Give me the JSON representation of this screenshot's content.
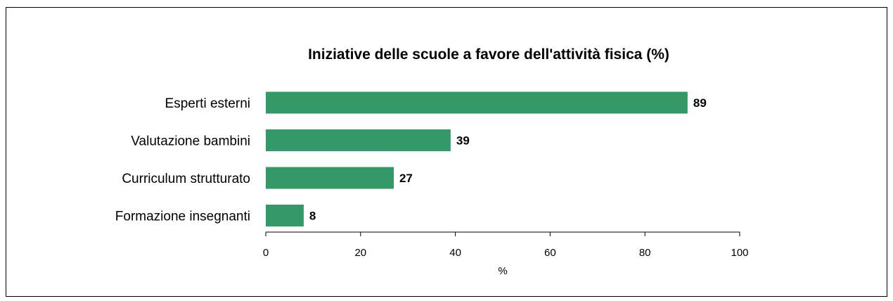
{
  "chart_data": {
    "type": "bar",
    "orientation": "horizontal",
    "title": "Iniziative delle scuole a favore dell'attività fisica (%)",
    "xlabel": "%",
    "ylabel": "",
    "categories": [
      "Esperti esterni",
      "Valutazione bambini",
      "Curriculum strutturato",
      "Formazione insegnanti"
    ],
    "values": [
      89,
      39,
      27,
      8
    ],
    "data_labels": [
      "89",
      "39",
      "27",
      "8"
    ],
    "xlim": [
      0,
      100
    ],
    "xticks": [
      0,
      20,
      40,
      60,
      80,
      100
    ],
    "xtick_labels": [
      "0",
      "20",
      "40",
      "60",
      "80",
      "100"
    ],
    "grid": false,
    "legend": "none",
    "bar_color": "#339966"
  }
}
